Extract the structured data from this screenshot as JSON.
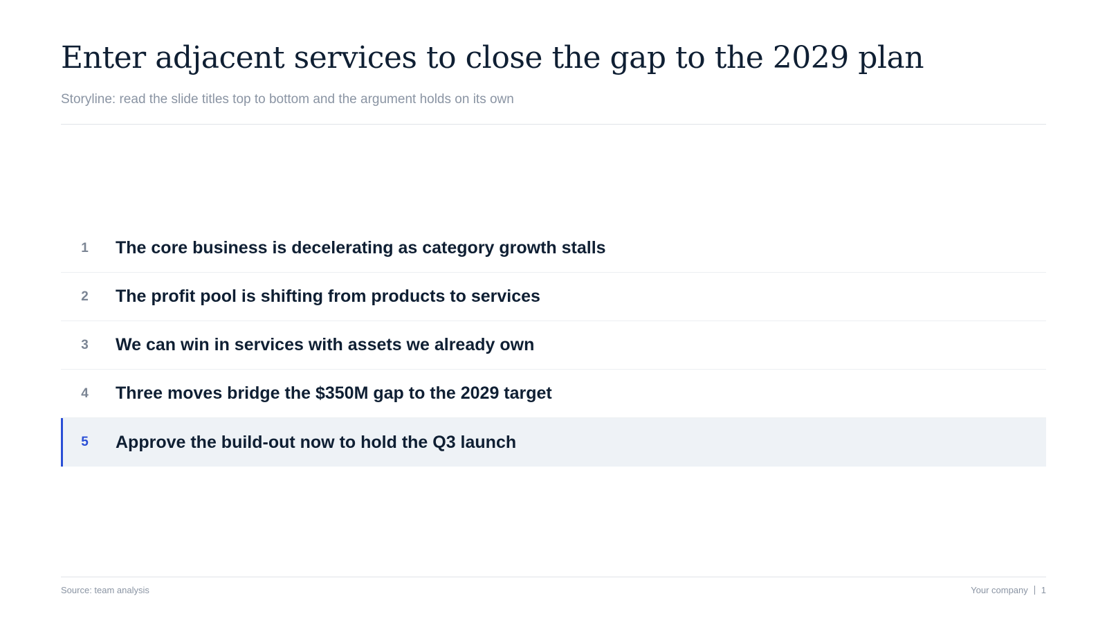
{
  "header": {
    "title": "Enter adjacent services to close the gap to the 2029 plan",
    "subtitle": "Storyline: read the slide titles top to bottom and the argument holds on its own"
  },
  "storyline": [
    {
      "number": 1,
      "text": "The core business is decelerating as category growth stalls",
      "highlighted": false
    },
    {
      "number": 2,
      "text": "The profit pool is shifting from products to services",
      "highlighted": false
    },
    {
      "number": 3,
      "text": "We can win in services with assets we already own",
      "highlighted": false
    },
    {
      "number": 4,
      "text": "Three moves bridge the $350M gap to the 2029 target",
      "highlighted": false
    },
    {
      "number": 5,
      "text": "Approve the build-out now to hold the Q3 launch",
      "highlighted": true
    }
  ],
  "footer": {
    "source": "Source: team analysis",
    "company": "Your company",
    "page": 1
  }
}
